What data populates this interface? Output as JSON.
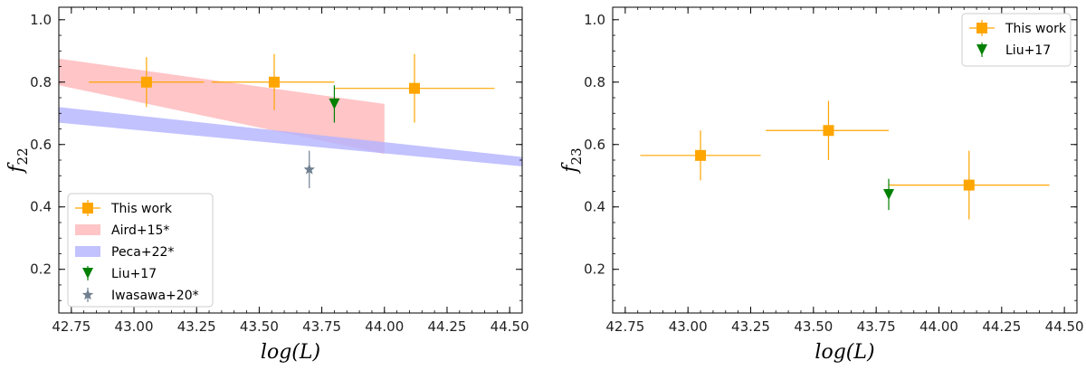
{
  "colors": {
    "this_work": "#ffa500",
    "liu": "#008000",
    "iwasawa": "#708090",
    "aird_band": "#ffb6b9",
    "peca_band": "#b3b3ff"
  },
  "chart_data": [
    {
      "type": "scatter",
      "xlabel": "log(L)",
      "ylabel": "f22",
      "xlim": [
        42.7,
        44.55
      ],
      "ylim": [
        0.06,
        1.04
      ],
      "xticks": [
        "42.75",
        "43.00",
        "43.25",
        "43.50",
        "43.75",
        "44.00",
        "44.25",
        "44.50"
      ],
      "yticks": [
        "0.2",
        "0.4",
        "0.6",
        "0.8",
        "1.0"
      ],
      "legend_position": "lower-left",
      "legend": [
        "This work",
        "Aird+15*",
        "Peca+22*",
        "Liu+17",
        "Iwasawa+20*"
      ],
      "series": [
        {
          "name": "This work",
          "marker": "square",
          "points": [
            {
              "x": 43.05,
              "y": 0.8,
              "xerr": [
                0.23,
                0.23
              ],
              "yerr": [
                0.08,
                0.08
              ]
            },
            {
              "x": 43.56,
              "y": 0.8,
              "xerr": [
                0.25,
                0.24
              ],
              "yerr": [
                0.09,
                0.09
              ]
            },
            {
              "x": 44.12,
              "y": 0.78,
              "xerr": [
                0.32,
                0.32
              ],
              "yerr": [
                0.11,
                0.11
              ]
            }
          ]
        },
        {
          "name": "Liu+17",
          "marker": "triangle-down",
          "points": [
            {
              "x": 43.8,
              "y": 0.73,
              "xerr": [
                0,
                0
              ],
              "yerr": [
                0.06,
                0.06
              ]
            }
          ]
        },
        {
          "name": "Iwasawa+20*",
          "marker": "star",
          "points": [
            {
              "x": 43.7,
              "y": 0.52,
              "xerr": [
                0,
                0
              ],
              "yerr": [
                0.06,
                0.06
              ]
            }
          ]
        }
      ],
      "bands": [
        {
          "name": "Aird+15*",
          "x": [
            42.7,
            44.0
          ],
          "upper": [
            0.875,
            0.73
          ],
          "lower": [
            0.79,
            0.57
          ]
        },
        {
          "name": "Peca+22*",
          "x": [
            42.7,
            44.55
          ],
          "upper": [
            0.72,
            0.56
          ],
          "lower": [
            0.67,
            0.53
          ]
        }
      ]
    },
    {
      "type": "scatter",
      "xlabel": "log(L)",
      "ylabel": "f23",
      "xlim": [
        42.7,
        44.55
      ],
      "ylim": [
        0.06,
        1.04
      ],
      "xticks": [
        "42.75",
        "43.00",
        "43.25",
        "43.50",
        "43.75",
        "44.00",
        "44.25",
        "44.50"
      ],
      "yticks": [
        "0.2",
        "0.4",
        "0.6",
        "0.8",
        "1.0"
      ],
      "legend_position": "upper-right",
      "legend": [
        "This work",
        "Liu+17"
      ],
      "series": [
        {
          "name": "This work",
          "marker": "square",
          "points": [
            {
              "x": 43.05,
              "y": 0.565,
              "xerr": [
                0.24,
                0.24
              ],
              "yerr": [
                0.08,
                0.08
              ]
            },
            {
              "x": 43.56,
              "y": 0.645,
              "xerr": [
                0.25,
                0.24
              ],
              "yerr": [
                0.095,
                0.095
              ]
            },
            {
              "x": 44.12,
              "y": 0.47,
              "xerr": [
                0.32,
                0.32
              ],
              "yerr": [
                0.11,
                0.11
              ]
            }
          ]
        },
        {
          "name": "Liu+17",
          "marker": "triangle-down",
          "points": [
            {
              "x": 43.8,
              "y": 0.44,
              "xerr": [
                0,
                0
              ],
              "yerr": [
                0.05,
                0.05
              ]
            }
          ]
        }
      ],
      "bands": []
    }
  ]
}
